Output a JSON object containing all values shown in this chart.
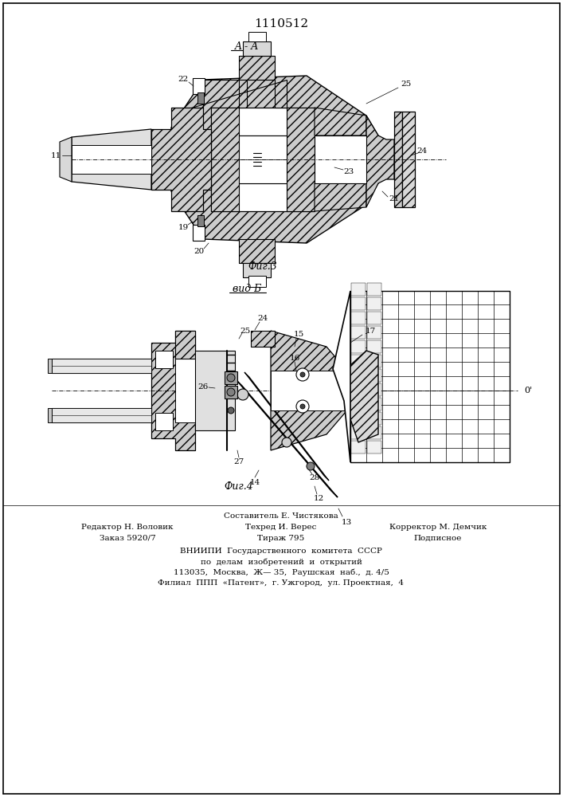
{
  "patent_number": "1110512",
  "background_color": "#f5f5f0",
  "page_bg": "#f5f5f0",
  "top_label": "A - A",
  "bottom_label": "вид Б",
  "fig3_caption": "Фиг.3",
  "fig4_caption": "Фиг.4",
  "footer_col1": [
    "Редактор Н. Воловик",
    "Заказ 5920/7"
  ],
  "footer_col2_top": "Составитель Е. Чистякова",
  "footer_col2": [
    "Техред И. Верес",
    "Тираж 795"
  ],
  "footer_col3": [
    "Корректор М. Демчик",
    "Подписное"
  ],
  "vnipi_lines": [
    "ВНИИПИ  Государственного  комитета  СССР",
    "по  делам  изобретений  и  открытий",
    "113035,  Москва,  Ж— 35,  Раушская  наб.,  д. 4/5",
    "Филиал  ППП  «Патент»,  г. Ужгород,  ул. Проектная,  4"
  ]
}
